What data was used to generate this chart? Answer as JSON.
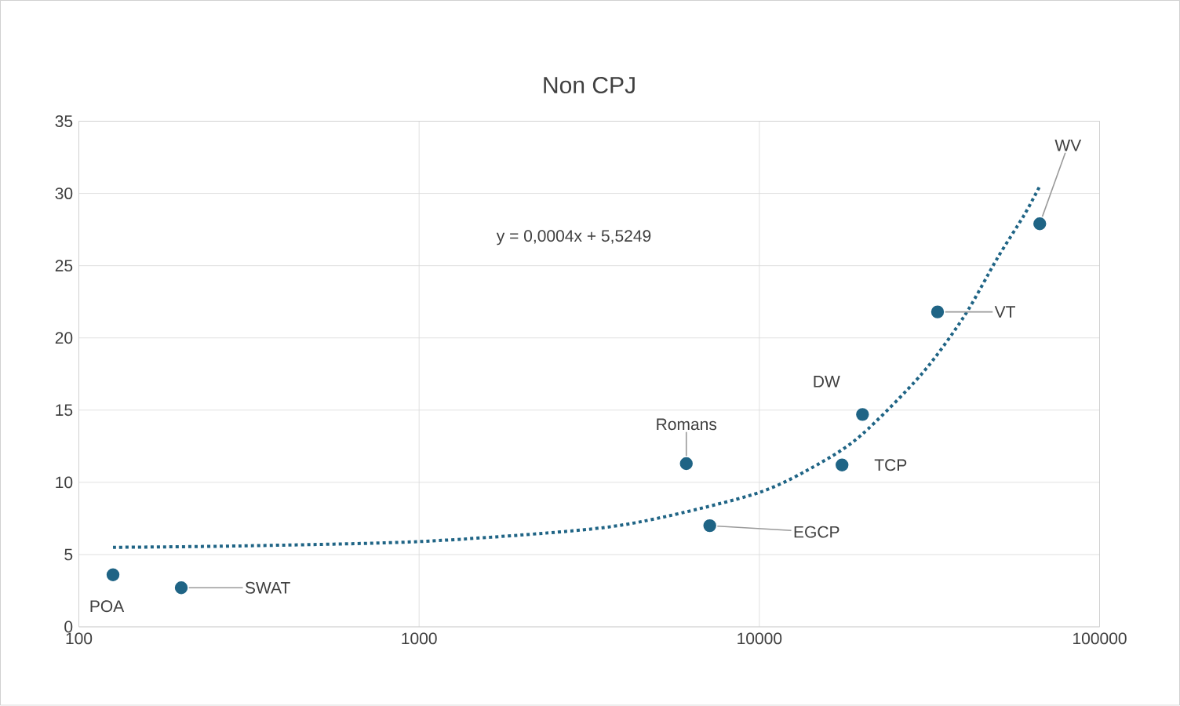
{
  "chart_data": {
    "type": "scatter",
    "title": "Non CPJ",
    "log": "x",
    "xlim": [
      100,
      100000
    ],
    "xticks": [
      100,
      1000,
      10000,
      100000
    ],
    "ylim": [
      0,
      35
    ],
    "yticks": [
      0,
      5,
      10,
      15,
      20,
      25,
      30,
      35
    ],
    "grid": true,
    "series": [
      {
        "marker": "circle",
        "color": "#1f6485",
        "x": [
          126,
          200,
          6100,
          7150,
          17500,
          20100,
          33400,
          66700
        ],
        "values": [
          3.6,
          2.7,
          11.3,
          7.0,
          11.2,
          14.7,
          21.8,
          27.9
        ]
      },
      {
        "type": "line",
        "marker": "none",
        "line_style": "dotted",
        "color": "#1f6485",
        "x": [
          126,
          300,
          1000,
          3000,
          5000,
          10000,
          15000,
          20000,
          30000,
          40000,
          50000,
          60000,
          66700
        ],
        "values": [
          5.5,
          5.6,
          5.9,
          6.7,
          7.5,
          9.3,
          11.3,
          13.3,
          17.5,
          21.5,
          25.5,
          28.5,
          30.5
        ]
      }
    ],
    "annotations": [
      {
        "text": "POA",
        "x": 126,
        "y": 3.6
      },
      {
        "text": "SWAT",
        "x": 200,
        "y": 2.7
      },
      {
        "text": "Romans",
        "x": 6100,
        "y": 11.3
      },
      {
        "text": "EGCP",
        "x": 7150,
        "y": 7.0
      },
      {
        "text": "TCP",
        "x": 17500,
        "y": 11.2
      },
      {
        "text": "DW",
        "x": 20100,
        "y": 14.7
      },
      {
        "text": "VT",
        "x": 33400,
        "y": 21.8
      },
      {
        "text": "WV",
        "x": 66700,
        "y": 27.9
      },
      "y = 0,0004x + 5,5249"
    ]
  }
}
